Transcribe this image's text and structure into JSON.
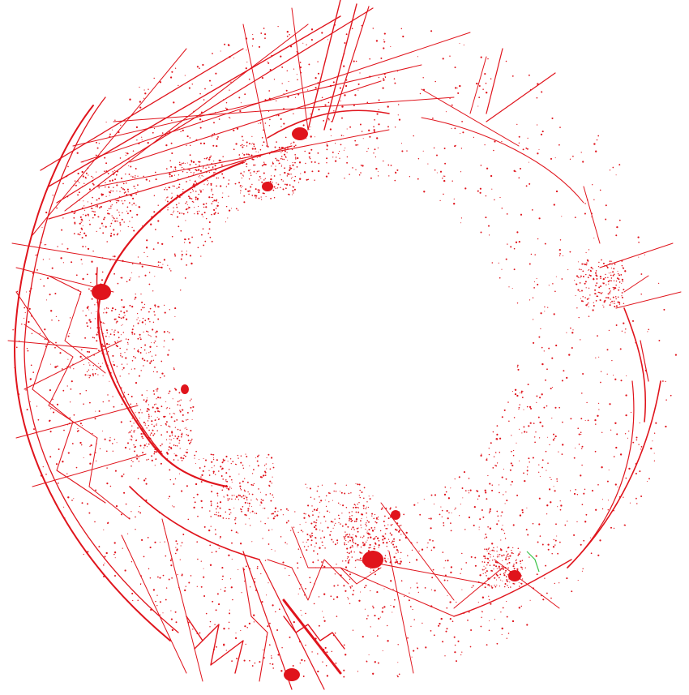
{
  "map": {
    "projection": "south-polar-stereographic",
    "track_color": "#e0141c",
    "highlight_color": "#3cc34a",
    "background_color": "#ffffff"
  }
}
